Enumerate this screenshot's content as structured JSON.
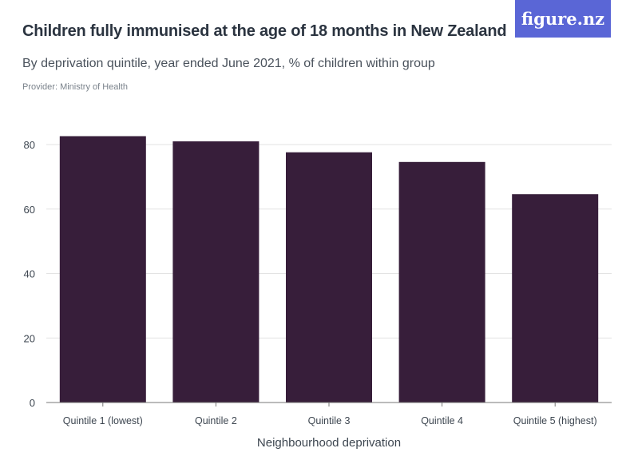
{
  "header": {
    "title": "Children fully immunised at the age of 18 months in New Zealand",
    "subtitle": "By deprivation quintile, year ended June 2021, % of children within group",
    "provider": "Provider: Ministry of Health",
    "logo": "figure.nz"
  },
  "colors": {
    "bar": "#371e3a",
    "grid": "#e3e3e3",
    "axis": "#777777",
    "logo_bg": "#5a66d6"
  },
  "chart_data": {
    "type": "bar",
    "categories": [
      "Quintile 1 (lowest)",
      "Quintile 2",
      "Quintile 3",
      "Quintile 4",
      "Quintile 5 (highest)"
    ],
    "values": [
      82.6,
      81.0,
      77.6,
      74.6,
      64.6
    ],
    "xlabel": "Neighbourhood deprivation",
    "ylabel": "",
    "ylim": [
      0,
      80
    ],
    "yticks": [
      0,
      20,
      40,
      60,
      80
    ],
    "grid": true
  }
}
